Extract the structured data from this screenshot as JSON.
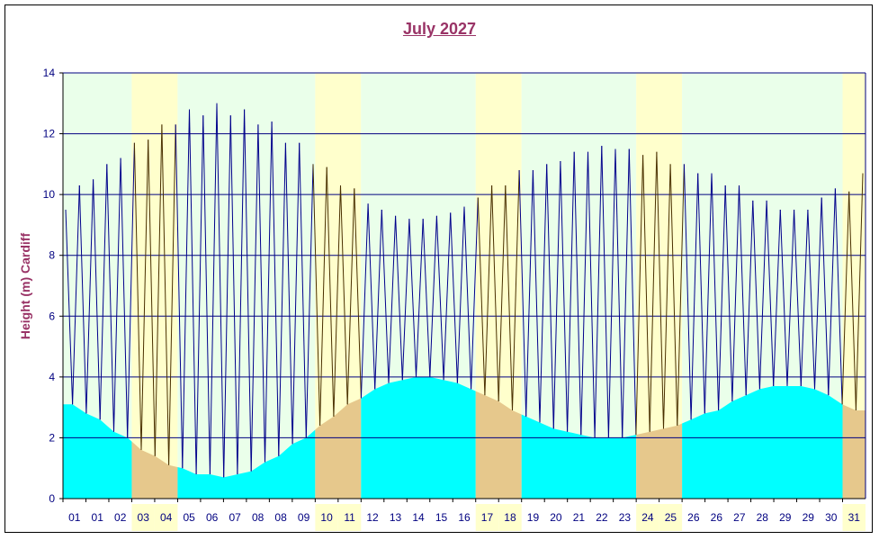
{
  "chart_data": {
    "type": "line",
    "title": "July 2027",
    "ylabel": "Height (m) Cardiff",
    "xlabel": "",
    "ylim": [
      0,
      14
    ],
    "yticks": [
      0,
      2,
      4,
      6,
      8,
      10,
      12,
      14
    ],
    "grid": true,
    "x_tick_labels": [
      "01",
      "01",
      "02",
      "03",
      "04",
      "05",
      "06",
      "07",
      "08",
      "08",
      "09",
      "10",
      "11",
      "12",
      "13",
      "14",
      "15",
      "16",
      "17",
      "18",
      "19",
      "20",
      "21",
      "22",
      "23",
      "24",
      "25",
      "26",
      "26",
      "27",
      "28",
      "29",
      "29",
      "30",
      "31"
    ],
    "weekend_tick_labels": [
      "03",
      "04",
      "10",
      "11",
      "17",
      "18",
      "24",
      "25",
      "31"
    ],
    "series": [
      {
        "name": "",
        "values": [
          9.5,
          3.1,
          10.3,
          2.8,
          10.5,
          2.6,
          11.0,
          2.2,
          11.2,
          2.0,
          11.7,
          1.6,
          11.8,
          1.4,
          12.3,
          1.1,
          12.3,
          1.0,
          12.8,
          0.8,
          12.6,
          0.8,
          13.0,
          0.7,
          12.6,
          0.8,
          12.8,
          0.9,
          12.3,
          1.2,
          12.4,
          1.4,
          11.7,
          1.8,
          11.7,
          2.0,
          11.0,
          2.4,
          10.9,
          2.7,
          10.3,
          3.1,
          10.2,
          3.3,
          9.7,
          3.6,
          9.5,
          3.8,
          9.3,
          3.9,
          9.2,
          4.0,
          9.2,
          4.0,
          9.3,
          3.9,
          9.4,
          3.8,
          9.6,
          3.6,
          9.9,
          3.4,
          10.3,
          3.2,
          10.3,
          2.9,
          10.8,
          2.7,
          10.8,
          2.5,
          11.0,
          2.3,
          11.1,
          2.2,
          11.4,
          2.1,
          11.4,
          2.0,
          11.6,
          2.0,
          11.5,
          2.0,
          11.5,
          2.1,
          11.3,
          2.2,
          11.4,
          2.3,
          11.0,
          2.4,
          11.0,
          2.6,
          10.7,
          2.8,
          10.7,
          2.9,
          10.3,
          3.2,
          10.3,
          3.4,
          9.8,
          3.6,
          9.8,
          3.7,
          9.5,
          3.7,
          9.5,
          3.7,
          9.5,
          3.6,
          9.9,
          3.4,
          10.2,
          3.1,
          10.1,
          2.9,
          10.7
        ]
      }
    ],
    "colors": {
      "weekday_band": "#eaffea",
      "weekend_band": "#ffffcc",
      "weekday_fill": "#00ffff",
      "weekend_fill": "#e6c88c",
      "weekday_line": "#00008b",
      "weekend_line": "#4a3000",
      "gridline": "#000080",
      "title": "#993366"
    }
  }
}
